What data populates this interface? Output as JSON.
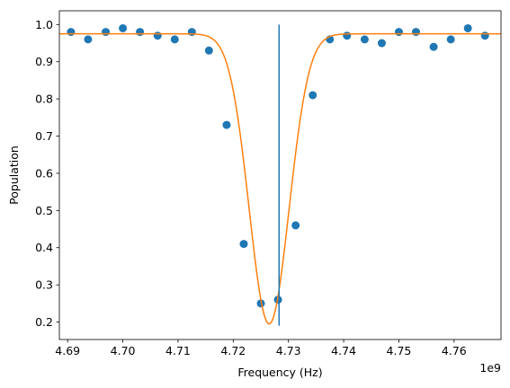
{
  "chart_data": {
    "type": "scatter",
    "xlabel": "Frequency (Hz)",
    "ylabel": "Population",
    "x_offset_label": "1e9",
    "xlim": [
      4.6885,
      4.7685
    ],
    "ylim": [
      0.153,
      1.037
    ],
    "x_ticks": [
      4.69,
      4.7,
      4.71,
      4.72,
      4.73,
      4.74,
      4.75,
      4.76
    ],
    "x_tick_labels": [
      "4.69",
      "4.70",
      "4.71",
      "4.72",
      "4.73",
      "4.74",
      "4.75",
      "4.76"
    ],
    "y_ticks": [
      0.2,
      0.3,
      0.4,
      0.5,
      0.6,
      0.7,
      0.8,
      0.9,
      1.0
    ],
    "y_tick_labels": [
      "0.2",
      "0.3",
      "0.4",
      "0.5",
      "0.6",
      "0.7",
      "0.8",
      "0.9",
      "1.0"
    ],
    "grid": false,
    "series": [
      {
        "kind": "scatter",
        "color": "#1f77b4",
        "x": [
          4.6906,
          4.6937,
          4.6969,
          4.7,
          4.7031,
          4.7063,
          4.7094,
          4.7125,
          4.7156,
          4.7188,
          4.7219,
          4.725,
          4.7281,
          4.7313,
          4.7344,
          4.7375,
          4.7406,
          4.7438,
          4.7469,
          4.75,
          4.7531,
          4.7563,
          4.7594,
          4.7625,
          4.7656
        ],
        "y": [
          0.98,
          0.96,
          0.98,
          0.99,
          0.98,
          0.97,
          0.96,
          0.98,
          0.93,
          0.73,
          0.41,
          0.25,
          0.26,
          0.46,
          0.81,
          0.96,
          0.97,
          0.96,
          0.95,
          0.98,
          0.98,
          0.94,
          0.96,
          0.99,
          0.97
        ]
      },
      {
        "kind": "fit-curve",
        "color": "#ff7f0e",
        "model": "gaussian-dip",
        "baseline": 0.975,
        "depth": 0.78,
        "center": 4.7265,
        "sigma": 0.0036
      },
      {
        "kind": "vertical-line",
        "color": "#1f77b4",
        "x": 4.7283,
        "y_range": [
          0.19,
          1.0
        ]
      }
    ]
  }
}
